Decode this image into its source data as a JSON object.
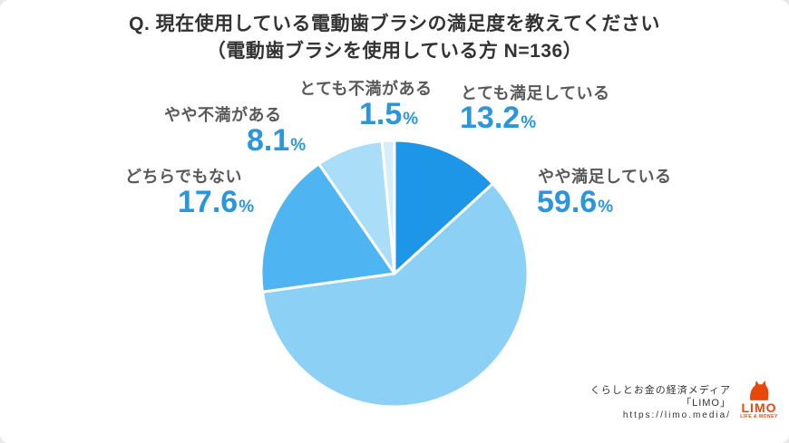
{
  "title": {
    "line1": "Q. 現在使用している電動歯ブラシの満足度を教えてください",
    "line2": "（電動歯ブラシを使用している方 N=136）"
  },
  "chart_data": {
    "type": "pie",
    "title": "Q. 現在使用している電動歯ブラシの満足度を教えてください（電動歯ブラシを使用している方 N=136）",
    "unit": "%",
    "start_angle_deg": -90,
    "direction": "clockwise",
    "legend_position": "around-labels",
    "value_label_color": "#2B96DC",
    "category_label_color": "#595959",
    "slices": [
      {
        "label": "とても満足している",
        "value": 13.2,
        "color": "#1E96E8"
      },
      {
        "label": "やや満足している",
        "value": 59.6,
        "color": "#8DD0F6"
      },
      {
        "label": "どちらでもない",
        "value": 17.6,
        "color": "#4FB5F2"
      },
      {
        "label": "やや不満がある",
        "value": 8.1,
        "color": "#AADDF8"
      },
      {
        "label": "とても不満がある",
        "value": 1.5,
        "color": "#D6EEFB"
      }
    ]
  },
  "footer": {
    "tagline": "くらしとお金の経済メディア",
    "brand_line": "「LIMO」",
    "url": "https://limo.media/",
    "logo": {
      "text": "LIMO",
      "subtext": "LIFE & MONEY",
      "color": "#E8470B"
    }
  }
}
